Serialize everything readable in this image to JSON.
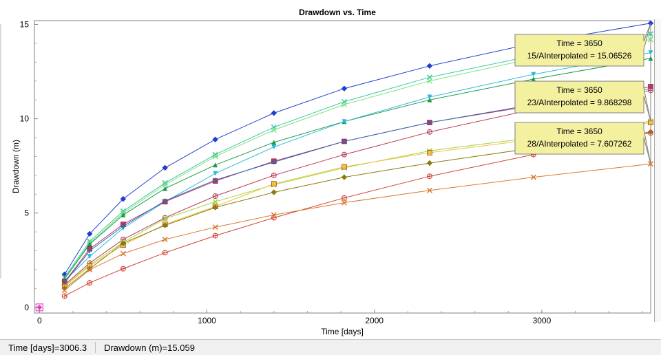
{
  "chart_data": {
    "type": "line",
    "title": "Drawdown vs. Time",
    "xlabel": "Time  [days]",
    "ylabel": "Drawdown (m)",
    "xlim": [
      -30,
      3650
    ],
    "ylim": [
      -0.3,
      15.2
    ],
    "xticks": [
      0,
      1000,
      2000,
      3000
    ],
    "yticks": [
      0,
      5,
      10,
      15
    ],
    "grid": false,
    "x": [
      0,
      150,
      300,
      500,
      750,
      1050,
      1400,
      1820,
      2330,
      2950,
      3650
    ],
    "series": [
      {
        "color": "#1f3fcf",
        "marker": "diamond",
        "values": [
          0,
          1.75,
          3.9,
          5.75,
          7.4,
          8.9,
          10.3,
          11.6,
          12.8,
          14.0,
          15.06526
        ]
      },
      {
        "color": "#3cc8a0",
        "marker": "x",
        "values": [
          0,
          1.6,
          3.5,
          5.1,
          6.6,
          8.1,
          9.55,
          10.9,
          12.2,
          13.35,
          14.5
        ]
      },
      {
        "color": "#7fe07f",
        "marker": "x",
        "values": [
          0,
          1.55,
          3.4,
          5.0,
          6.5,
          8.0,
          9.4,
          10.75,
          12.0,
          13.2,
          14.2
        ]
      },
      {
        "color": "#1a9a4a",
        "marker": "triangle",
        "values": [
          0,
          1.5,
          3.35,
          4.9,
          6.3,
          7.55,
          8.75,
          9.85,
          11.0,
          12.1,
          13.2
        ]
      },
      {
        "color": "#30b8d8",
        "marker": "triangle-down",
        "values": [
          0,
          1.4,
          2.7,
          4.2,
          5.6,
          7.1,
          8.5,
          9.85,
          11.15,
          12.35,
          13.5
        ]
      },
      {
        "color": "#c0306e",
        "marker": "square",
        "values": [
          0,
          1.35,
          3.1,
          4.4,
          5.6,
          6.7,
          7.75,
          8.8,
          9.8,
          10.7,
          11.7
        ]
      },
      {
        "color": "#2a6db0",
        "marker": "plus",
        "values": [
          0,
          1.3,
          3.0,
          4.3,
          5.65,
          6.75,
          7.7,
          8.8,
          9.8,
          10.75,
          11.6
        ]
      },
      {
        "color": "#b83a55",
        "marker": "circle-plus",
        "values": [
          0,
          1.2,
          2.35,
          3.6,
          4.75,
          5.9,
          7.0,
          8.1,
          9.3,
          10.5,
          11.5
        ]
      },
      {
        "color": "#9ad838",
        "marker": "x",
        "values": [
          0,
          1.15,
          2.25,
          3.45,
          4.7,
          5.6,
          6.5,
          7.4,
          8.3,
          9.0,
          9.868298
        ]
      },
      {
        "color": "#f0c040",
        "marker": "square",
        "values": [
          0,
          1.1,
          2.2,
          3.3,
          4.4,
          5.35,
          6.55,
          7.45,
          8.2,
          8.9,
          9.8
        ]
      },
      {
        "color": "#8a7a10",
        "marker": "diamond",
        "values": [
          0,
          1.0,
          2.05,
          3.4,
          4.35,
          5.3,
          6.1,
          6.9,
          7.65,
          8.45,
          9.3
        ]
      },
      {
        "color": "#d04030",
        "marker": "circle-plus",
        "values": [
          0,
          0.6,
          1.3,
          2.05,
          2.9,
          3.8,
          4.75,
          5.8,
          6.95,
          8.1,
          9.25
        ]
      },
      {
        "color": "#d87a30",
        "marker": "x",
        "values": [
          0,
          0.9,
          2.0,
          2.85,
          3.6,
          4.25,
          4.9,
          5.55,
          6.2,
          6.9,
          7.607262
        ]
      }
    ],
    "callouts": [
      {
        "line1": "Time = 3650",
        "line2": "15/AInterpolated = 15.06526",
        "x": 3650,
        "y": 15.06526
      },
      {
        "line1": "Time = 3650",
        "line2": "23/AInterpolated = 9.868298",
        "x": 3650,
        "y": 9.868298
      },
      {
        "line1": "Time = 3650",
        "line2": "28/AInterpolated = 7.607262",
        "x": 3650,
        "y": 7.607262
      }
    ],
    "origin_marker_color": "#e040c0"
  },
  "status": {
    "time_readout": "Time  [days]=3006.3",
    "drawdown_readout": "Drawdown (m)=15.059"
  }
}
